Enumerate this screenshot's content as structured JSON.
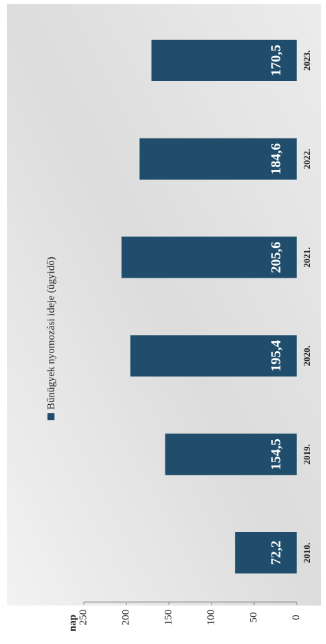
{
  "chart_data": {
    "type": "bar",
    "legend_label": "Bűnügyek nyomozási ideje (ügyidő)",
    "y_label": "nap",
    "categories": [
      "2010.",
      "2019.",
      "2020.",
      "2021.",
      "2022.",
      "2023."
    ],
    "values": [
      72.2,
      154.5,
      195.4,
      205.6,
      184.6,
      170.5
    ],
    "value_labels": [
      "72,2",
      "154,5",
      "195,4",
      "205,6",
      "184,6",
      "170,5"
    ],
    "color": "#1f4d6b",
    "ylim": [
      0,
      250
    ],
    "yticks": [
      0,
      50,
      100,
      150,
      200,
      250
    ]
  }
}
